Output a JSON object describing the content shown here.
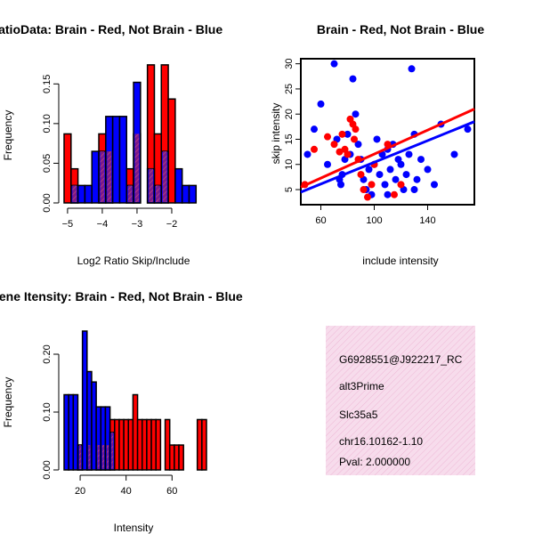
{
  "chart_data": [
    {
      "id": "ratio",
      "type": "histogram",
      "title": "RatioData: Brain - Red, Not Brain - Blue",
      "xlabel": "Log2 Ratio Skip/Include",
      "ylabel": "Frequency",
      "xlim": [
        -5.1,
        -1.0
      ],
      "ylim": [
        0,
        0.175
      ],
      "xticks": [
        -5,
        -4,
        -3,
        -2
      ],
      "xtick_labels": [
        "−5",
        "−4",
        "−3",
        "−2"
      ],
      "yticks": [
        0,
        0.05,
        0.1,
        0.15
      ],
      "ytick_labels": [
        "0.00",
        "0.05",
        "0.10",
        "0.15"
      ],
      "series": [
        {
          "name": "Brain",
          "color": "#ff0000",
          "bars": [
            [
              -5.1,
              -4.9,
              0.087
            ],
            [
              -4.9,
              -4.7,
              0.043
            ],
            [
              -4.1,
              -3.9,
              0.087
            ],
            [
              -3.9,
              -3.7,
              0.065
            ],
            [
              -3.3,
              -3.1,
              0.043
            ],
            [
              -3.1,
              -2.9,
              0.087
            ],
            [
              -2.7,
              -2.5,
              0.174
            ],
            [
              -2.5,
              -2.3,
              0.087
            ],
            [
              -2.3,
              -2.1,
              0.174
            ],
            [
              -2.1,
              -1.9,
              0.131
            ]
          ]
        },
        {
          "name": "Not Brain",
          "color": "#0000ff",
          "bars": [
            [
              -4.9,
              -4.7,
              0.022
            ],
            [
              -4.7,
              -4.5,
              0.022
            ],
            [
              -4.5,
              -4.3,
              0.022
            ],
            [
              -4.3,
              -4.1,
              0.065
            ],
            [
              -4.1,
              -3.9,
              0.065
            ],
            [
              -3.9,
              -3.7,
              0.109
            ],
            [
              -3.7,
              -3.5,
              0.109
            ],
            [
              -3.5,
              -3.3,
              0.109
            ],
            [
              -3.3,
              -3.1,
              0.022
            ],
            [
              -3.1,
              -2.9,
              0.152
            ],
            [
              -2.7,
              -2.5,
              0.043
            ],
            [
              -2.5,
              -2.3,
              0.022
            ],
            [
              -2.3,
              -2.1,
              0.065
            ],
            [
              -1.9,
              -1.7,
              0.043
            ],
            [
              -1.7,
              -1.5,
              0.022
            ],
            [
              -1.5,
              -1.3,
              0.022
            ]
          ]
        }
      ]
    },
    {
      "id": "scatter",
      "type": "scatter",
      "title": "Brain - Red, Not Brain - Blue",
      "xlabel": "include intensity",
      "ylabel": "skip intensity",
      "xlim": [
        45,
        175
      ],
      "ylim": [
        2,
        31
      ],
      "xticks": [
        60,
        100,
        140
      ],
      "xtick_labels": [
        "60",
        "100",
        "140"
      ],
      "yticks": [
        5,
        10,
        15,
        20,
        25,
        30
      ],
      "ytick_labels": [
        "5",
        "10",
        "15",
        "20",
        "25",
        "30"
      ],
      "series": [
        {
          "name": "Brain",
          "color": "#ff0000",
          "points": [
            [
              48,
              6
            ],
            [
              55,
              13
            ],
            [
              65,
              15.5
            ],
            [
              70,
              14
            ],
            [
              74,
              12.5
            ],
            [
              76,
              16
            ],
            [
              78,
              13
            ],
            [
              80,
              12
            ],
            [
              82,
              19
            ],
            [
              84,
              18
            ],
            [
              85,
              15
            ],
            [
              86,
              17
            ],
            [
              88,
              11
            ],
            [
              90,
              8
            ],
            [
              92,
              5
            ],
            [
              95,
              3.5
            ],
            [
              98,
              6
            ],
            [
              100,
              10
            ],
            [
              110,
              14
            ],
            [
              115,
              4
            ],
            [
              120,
              6
            ]
          ],
          "fit": [
            [
              45,
              5.5
            ],
            [
              175,
              21
            ]
          ]
        },
        {
          "name": "Not Brain",
          "color": "#0000ff",
          "points": [
            [
              50,
              12
            ],
            [
              55,
              17
            ],
            [
              60,
              22
            ],
            [
              65,
              10
            ],
            [
              70,
              30
            ],
            [
              72,
              15
            ],
            [
              74,
              7
            ],
            [
              75,
              6
            ],
            [
              76,
              8
            ],
            [
              78,
              11
            ],
            [
              80,
              16
            ],
            [
              82,
              12
            ],
            [
              84,
              27
            ],
            [
              86,
              20
            ],
            [
              88,
              14
            ],
            [
              90,
              11
            ],
            [
              92,
              7
            ],
            [
              94,
              5
            ],
            [
              96,
              9
            ],
            [
              98,
              4
            ],
            [
              100,
              10
            ],
            [
              102,
              15
            ],
            [
              104,
              8
            ],
            [
              106,
              12
            ],
            [
              108,
              6
            ],
            [
              110,
              13
            ],
            [
              112,
              9
            ],
            [
              114,
              14
            ],
            [
              116,
              7
            ],
            [
              118,
              11
            ],
            [
              120,
              10
            ],
            [
              122,
              5
            ],
            [
              124,
              8
            ],
            [
              126,
              12
            ],
            [
              128,
              29
            ],
            [
              130,
              16
            ],
            [
              132,
              7
            ],
            [
              135,
              11
            ],
            [
              140,
              9
            ],
            [
              145,
              6
            ],
            [
              150,
              18
            ],
            [
              160,
              12
            ],
            [
              170,
              17
            ],
            [
              130,
              5
            ],
            [
              110,
              4
            ]
          ],
          "fit": [
            [
              45,
              4.5
            ],
            [
              175,
              18.5
            ]
          ]
        }
      ]
    },
    {
      "id": "intensity",
      "type": "histogram",
      "title": "Gene Itensity: Brain - Red, Not Brain - Blue",
      "xlabel": "Intensity",
      "ylabel": "Frequency",
      "xlim": [
        13,
        75
      ],
      "ylim": [
        0,
        0.24
      ],
      "xticks": [
        20,
        40,
        60
      ],
      "xtick_labels": [
        "20",
        "40",
        "60"
      ],
      "yticks": [
        0,
        0.1,
        0.2
      ],
      "ytick_labels": [
        "0.00",
        "0.10",
        "0.20"
      ],
      "series": [
        {
          "name": "Brain",
          "color": "#ff0000",
          "bars": [
            [
              19,
              21,
              0.043
            ],
            [
              23,
              25,
              0.043
            ],
            [
              27,
              29,
              0.043
            ],
            [
              29,
              31,
              0.043
            ],
            [
              31,
              33,
              0.043
            ],
            [
              33,
              35,
              0.087
            ],
            [
              35,
              37,
              0.087
            ],
            [
              37,
              39,
              0.087
            ],
            [
              39,
              41,
              0.087
            ],
            [
              41,
              43,
              0.087
            ],
            [
              43,
              45,
              0.13
            ],
            [
              45,
              47,
              0.087
            ],
            [
              47,
              49,
              0.087
            ],
            [
              49,
              51,
              0.087
            ],
            [
              51,
              53,
              0.087
            ],
            [
              53,
              55,
              0.087
            ],
            [
              57,
              59,
              0.087
            ],
            [
              59,
              61,
              0.043
            ],
            [
              61,
              63,
              0.043
            ],
            [
              63,
              65,
              0.043
            ],
            [
              71,
              73,
              0.087
            ],
            [
              73,
              75,
              0.087
            ]
          ]
        },
        {
          "name": "Not Brain",
          "color": "#0000ff",
          "bars": [
            [
              13,
              15,
              0.13
            ],
            [
              15,
              17,
              0.13
            ],
            [
              17,
              19,
              0.13
            ],
            [
              19,
              21,
              0.043
            ],
            [
              21,
              23,
              0.24
            ],
            [
              23,
              25,
              0.17
            ],
            [
              25,
              27,
              0.152
            ],
            [
              27,
              29,
              0.109
            ],
            [
              29,
              31,
              0.109
            ],
            [
              31,
              33,
              0.109
            ],
            [
              33,
              35,
              0.065
            ]
          ]
        }
      ]
    }
  ],
  "info": {
    "line1": "G6928551@J922217_RC",
    "line2": "alt3Prime",
    "line3": "Slc35a5",
    "line4": "chr16.10162-1.10",
    "pval": "Pval: 2.000000",
    "pval_color": "#cc0000",
    "bg_color": "#f5d6e8"
  }
}
